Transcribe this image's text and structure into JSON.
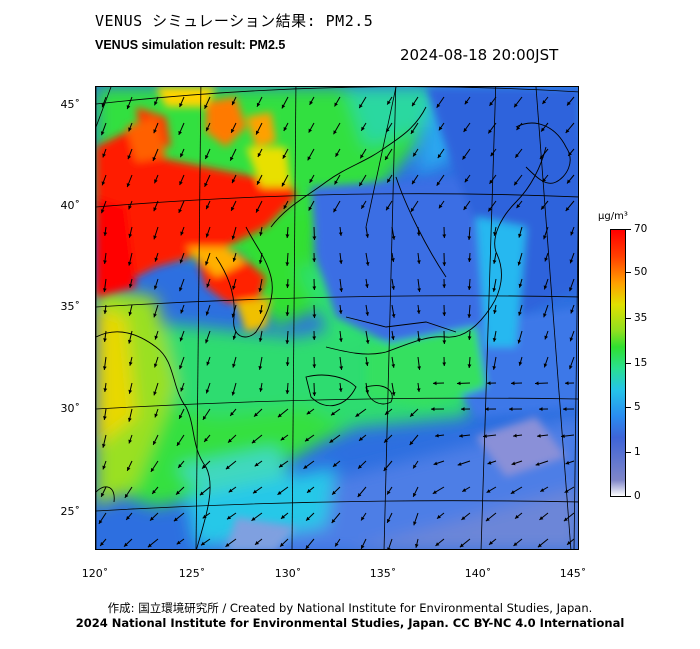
{
  "header": {
    "title_jp": "VENUS シミュレーション結果: PM2.5",
    "title_en": "VENUS simulation result: PM2.5",
    "timestamp": "2024-08-18 20:00JST"
  },
  "map": {
    "region": "East Asia / Japan",
    "lat_labels": [
      "45˚",
      "40˚",
      "35˚",
      "30˚",
      "25˚"
    ],
    "lon_labels": [
      "120˚",
      "125˚",
      "130˚",
      "135˚",
      "140˚",
      "145˚"
    ],
    "wind_vectors": "shown"
  },
  "colorbar": {
    "unit": "μg/m³",
    "ticks": [
      "70",
      "50",
      "35",
      "15",
      "5",
      "1",
      "0"
    ],
    "colors": [
      "#ff0000",
      "#ff8c00",
      "#f0e000",
      "#30e030",
      "#25c4e8",
      "#3e64d8",
      "#ffffff"
    ]
  },
  "footer": {
    "credit": "作成: 国立環境研究所 / Created by National Institute for Environmental Studies, Japan.",
    "copyright": "2024 National Institute for Environmental Studies, Japan. CC BY-NC 4.0 International"
  }
}
